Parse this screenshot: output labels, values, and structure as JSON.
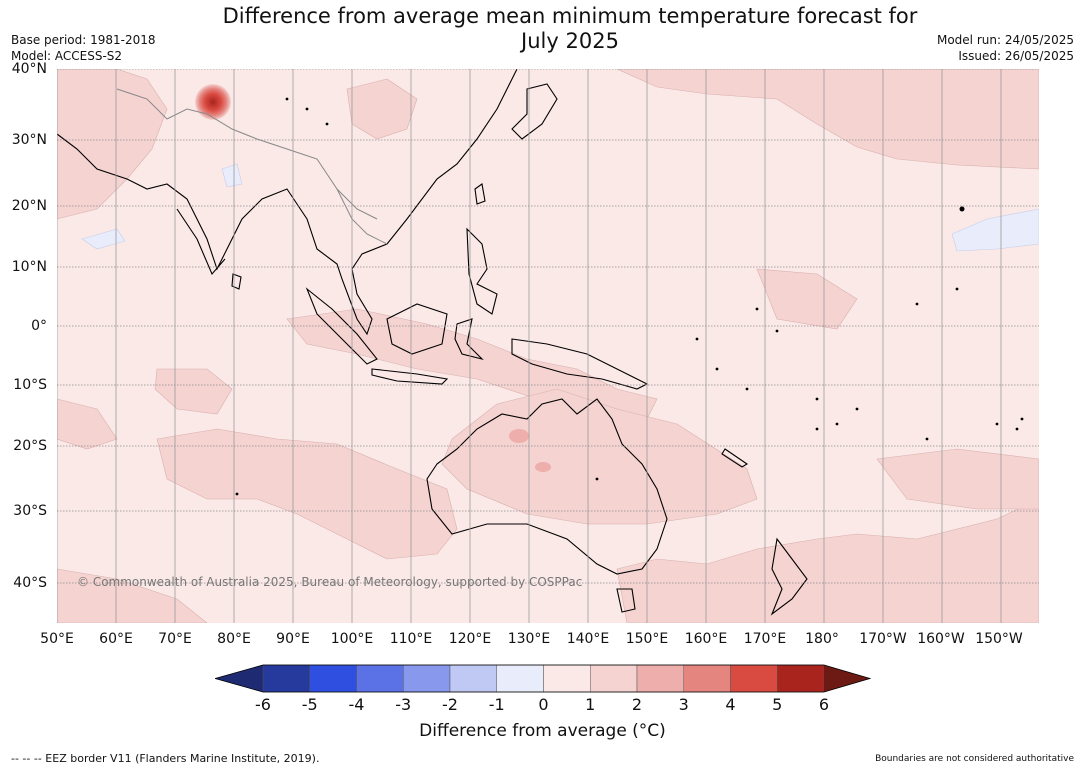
{
  "title_line1": "Difference from average mean minimum temperature forecast for",
  "title_line2": "July 2025",
  "meta": {
    "base_period": "Base period: 1981-2018",
    "model": "Model: ACCESS-S2",
    "model_run": "Model run: 24/05/2025",
    "issued": "Issued: 26/05/2025"
  },
  "map": {
    "lat_labels": [
      "40°N",
      "30°N",
      "20°N",
      "10°N",
      "0°",
      "10°S",
      "20°S",
      "30°S",
      "40°S"
    ],
    "lon_labels": [
      "50°E",
      "60°E",
      "70°E",
      "80°E",
      "90°E",
      "100°E",
      "110°E",
      "120°E",
      "130°E",
      "140°E",
      "150°E",
      "160°E",
      "170°E",
      "180°",
      "170°W",
      "160°W",
      "150°W"
    ],
    "copyright": "© Commonwealth of Australia 2025, Bureau of Meteorology, supported by COSPPac"
  },
  "colorbar": {
    "ticks": [
      "-6",
      "-5",
      "-4",
      "-3",
      "-2",
      "-1",
      "0",
      "1",
      "2",
      "3",
      "4",
      "5",
      "6"
    ],
    "colors": [
      "#263a9e",
      "#2f4fe0",
      "#5b72e6",
      "#8898ec",
      "#c0c8f4",
      "#e8ecfb",
      "#fbe9e8",
      "#f4d3d1",
      "#eeaeab",
      "#e58580",
      "#d94a40",
      "#a8241d"
    ],
    "under_color": "#1e2a72",
    "over_color": "#6e1a14",
    "label": "Difference from average (°C)"
  },
  "footer": {
    "left": "--  --  -- EEZ border V11 (Flanders Marine Institute, 2019).",
    "right": "Boundaries are not considered authoritative"
  }
}
